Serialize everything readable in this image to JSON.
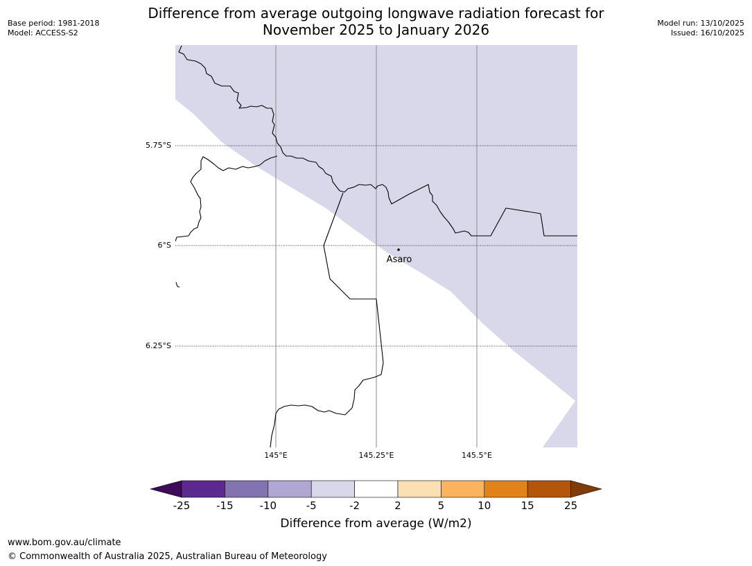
{
  "title": {
    "line1": "Difference from average outgoing longwave radiation forecast for",
    "line2": "November 2025 to January 2026"
  },
  "meta": {
    "base_period": "Base period: 1981-2018",
    "model": "Model: ACCESS-S2",
    "model_run": "Model run: 13/10/2025",
    "issued": "Issued: 16/10/2025"
  },
  "map": {
    "lat_labels": [
      "5.75°S",
      "6°S",
      "6.25°S"
    ],
    "lon_labels": [
      "145°E",
      "145.25°E",
      "145.5°E"
    ],
    "place": "Asaro",
    "shaded_category": "-5 to -2",
    "shade_color": "#d8d8ea"
  },
  "colorbar": {
    "ticks": [
      "-25",
      "-15",
      "-10",
      "-5",
      "-2",
      "2",
      "5",
      "10",
      "15",
      "25"
    ],
    "colors": [
      "#3f0a57",
      "#5b2990",
      "#8373b0",
      "#b0a7d2",
      "#d8d8ea",
      "#ffffff",
      "#fddfb4",
      "#fbb35e",
      "#e1821a",
      "#b4560a",
      "#7f3b08"
    ],
    "label": "Difference from average (W/m2)"
  },
  "footer": {
    "url": "www.bom.gov.au/climate",
    "copyright": "© Commonwealth of Australia 2025, Australian Bureau of Meteorology"
  }
}
